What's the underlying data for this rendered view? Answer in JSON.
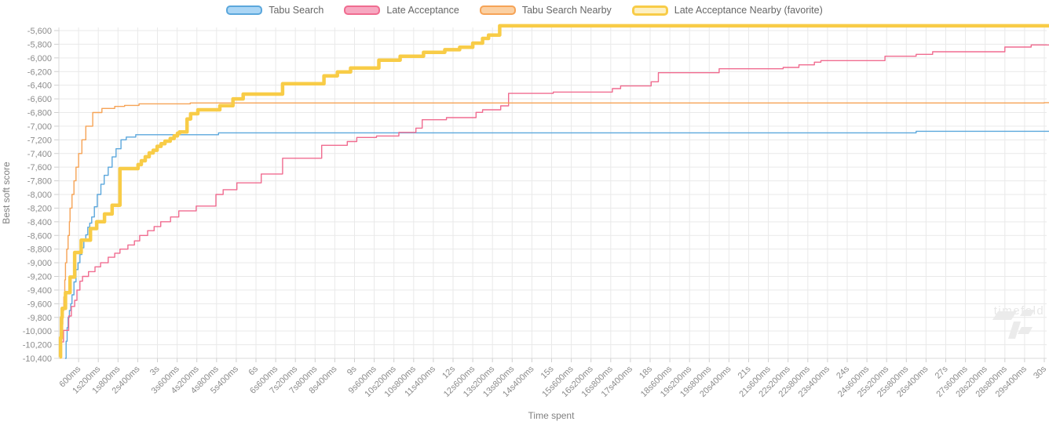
{
  "watermark": {
    "text": "timefold"
  },
  "chart_data": {
    "type": "line",
    "step": true,
    "title": "",
    "xlabel": "Time spent",
    "ylabel": "Best soft score",
    "grid": true,
    "legend_position": "top",
    "x_axis": {
      "range_seconds": [
        0,
        30
      ],
      "tick_interval_seconds": 0.6,
      "first_tick_seconds": 0.6,
      "tick_labels": [
        "600ms",
        "1s200ms",
        "1s800ms",
        "2s400ms",
        "3s",
        "3s600ms",
        "4s200ms",
        "4s800ms",
        "5s400ms",
        "6s",
        "6s600ms",
        "7s200ms",
        "7s800ms",
        "8s400ms",
        "9s",
        "9s600ms",
        "10s200ms",
        "10s800ms",
        "11s400ms",
        "12s",
        "12s600ms",
        "13s200ms",
        "13s800ms",
        "14s400ms",
        "15s",
        "15s600ms",
        "16s200ms",
        "16s800ms",
        "17s400ms",
        "18s",
        "18s600ms",
        "19s200ms",
        "19s800ms",
        "20s400ms",
        "21s",
        "21s600ms",
        "22s200ms",
        "22s800ms",
        "23s400ms",
        "24s",
        "24s600ms",
        "25s200ms",
        "25s800ms",
        "26s400ms",
        "27s",
        "27s600ms",
        "28s200ms",
        "28s800ms",
        "29s400ms",
        "30s"
      ]
    },
    "y_axis": {
      "tick_max": -5600,
      "tick_min": -10400,
      "tick_step": 200,
      "tick_labels": [
        "-5,600",
        "-5,800",
        "-6,000",
        "-6,200",
        "-6,400",
        "-6,600",
        "-6,800",
        "-7,000",
        "-7,200",
        "-7,400",
        "-7,600",
        "-7,800",
        "-8,000",
        "-8,200",
        "-8,400",
        "-8,600",
        "-8,800",
        "-9,000",
        "-9,200",
        "-9,400",
        "-9,600",
        "-9,800",
        "-10,000",
        "-10,200",
        "-10,400"
      ]
    },
    "series": [
      {
        "name": "Tabu Search",
        "color": "#5ba7dc",
        "swatch_fill": "#abd6f5",
        "line_width": 1.4,
        "favorite": false,
        "points": [
          [
            0.19,
            -10400
          ],
          [
            0.22,
            -10150
          ],
          [
            0.25,
            -9950
          ],
          [
            0.28,
            -9800
          ],
          [
            0.32,
            -9700
          ],
          [
            0.36,
            -9600
          ],
          [
            0.4,
            -9470
          ],
          [
            0.46,
            -9280
          ],
          [
            0.52,
            -9100
          ],
          [
            0.58,
            -9000
          ],
          [
            0.64,
            -8880
          ],
          [
            0.7,
            -8780
          ],
          [
            0.76,
            -8680
          ],
          [
            0.82,
            -8590
          ],
          [
            0.88,
            -8480
          ],
          [
            0.94,
            -8420
          ],
          [
            1.0,
            -8330
          ],
          [
            1.08,
            -8180
          ],
          [
            1.17,
            -8000
          ],
          [
            1.28,
            -7850
          ],
          [
            1.38,
            -7720
          ],
          [
            1.5,
            -7600
          ],
          [
            1.62,
            -7450
          ],
          [
            1.74,
            -7330
          ],
          [
            1.89,
            -7200
          ],
          [
            2.05,
            -7160
          ],
          [
            2.34,
            -7125
          ],
          [
            4.86,
            -7097
          ],
          [
            26.1,
            -7075
          ],
          [
            30,
            -7075
          ]
        ]
      },
      {
        "name": "Late Acceptance",
        "color": "#f06c90",
        "swatch_fill": "#f7a8c1",
        "line_width": 1.4,
        "favorite": false,
        "points": [
          [
            0.05,
            -10380
          ],
          [
            0.08,
            -10160
          ],
          [
            0.14,
            -9990
          ],
          [
            0.3,
            -9780
          ],
          [
            0.38,
            -9640
          ],
          [
            0.48,
            -9550
          ],
          [
            0.55,
            -9400
          ],
          [
            0.64,
            -9270
          ],
          [
            0.72,
            -9200
          ],
          [
            0.9,
            -9130
          ],
          [
            1.1,
            -9060
          ],
          [
            1.27,
            -9000
          ],
          [
            1.5,
            -8920
          ],
          [
            1.7,
            -8860
          ],
          [
            1.86,
            -8800
          ],
          [
            2.1,
            -8740
          ],
          [
            2.3,
            -8680
          ],
          [
            2.46,
            -8600
          ],
          [
            2.7,
            -8530
          ],
          [
            2.9,
            -8470
          ],
          [
            3.1,
            -8400
          ],
          [
            3.4,
            -8330
          ],
          [
            3.65,
            -8240
          ],
          [
            4.18,
            -8170
          ],
          [
            4.78,
            -8000
          ],
          [
            5.0,
            -7930
          ],
          [
            5.42,
            -7830
          ],
          [
            6.16,
            -7700
          ],
          [
            6.81,
            -7470
          ],
          [
            8.0,
            -7280
          ],
          [
            8.78,
            -7225
          ],
          [
            9.07,
            -7165
          ],
          [
            9.67,
            -7143
          ],
          [
            10.35,
            -7090
          ],
          [
            10.87,
            -7028
          ],
          [
            11.06,
            -6906
          ],
          [
            11.8,
            -6875
          ],
          [
            12.7,
            -6798
          ],
          [
            12.9,
            -6760
          ],
          [
            13.45,
            -6702
          ],
          [
            13.69,
            -6520
          ],
          [
            15.05,
            -6500
          ],
          [
            16.85,
            -6450
          ],
          [
            17.1,
            -6411
          ],
          [
            18.03,
            -6350
          ],
          [
            18.25,
            -6217
          ],
          [
            20.1,
            -6159
          ],
          [
            22.05,
            -6140
          ],
          [
            22.53,
            -6102
          ],
          [
            23.0,
            -6063
          ],
          [
            23.2,
            -6040
          ],
          [
            25.15,
            -5975
          ],
          [
            26.1,
            -5948
          ],
          [
            26.6,
            -5910
          ],
          [
            28.8,
            -5841
          ],
          [
            29.6,
            -5810
          ],
          [
            30,
            -5810
          ]
        ]
      },
      {
        "name": "Tabu Search Nearby",
        "color": "#f6a356",
        "swatch_fill": "#fbd0a2",
        "line_width": 1.4,
        "favorite": false,
        "points": [
          [
            0.03,
            -10350
          ],
          [
            0.06,
            -10100
          ],
          [
            0.09,
            -9900
          ],
          [
            0.12,
            -9700
          ],
          [
            0.15,
            -9500
          ],
          [
            0.18,
            -9250
          ],
          [
            0.2,
            -9000
          ],
          [
            0.24,
            -8800
          ],
          [
            0.28,
            -8600
          ],
          [
            0.32,
            -8400
          ],
          [
            0.34,
            -8200
          ],
          [
            0.4,
            -8000
          ],
          [
            0.46,
            -7800
          ],
          [
            0.52,
            -7600
          ],
          [
            0.6,
            -7400
          ],
          [
            0.7,
            -7200
          ],
          [
            0.82,
            -7000
          ],
          [
            1.03,
            -6800
          ],
          [
            1.31,
            -6740
          ],
          [
            1.7,
            -6710
          ],
          [
            2.0,
            -6695
          ],
          [
            2.44,
            -6672
          ],
          [
            4.0,
            -6660
          ],
          [
            30,
            -6655
          ]
        ]
      },
      {
        "name": "Late Acceptance Nearby (favorite)",
        "color": "#f8cc47",
        "swatch_fill": "#fdf0c2",
        "line_width": 4.5,
        "favorite": true,
        "points": [
          [
            0.02,
            -10380
          ],
          [
            0.05,
            -10100
          ],
          [
            0.08,
            -9800
          ],
          [
            0.1,
            -9668
          ],
          [
            0.2,
            -9438
          ],
          [
            0.34,
            -9210
          ],
          [
            0.48,
            -8850
          ],
          [
            0.68,
            -8670
          ],
          [
            0.96,
            -8500
          ],
          [
            1.15,
            -8400
          ],
          [
            1.39,
            -8286
          ],
          [
            1.62,
            -8157
          ],
          [
            1.86,
            -7621
          ],
          [
            2.41,
            -7563
          ],
          [
            2.51,
            -7506
          ],
          [
            2.63,
            -7448
          ],
          [
            2.75,
            -7391
          ],
          [
            2.87,
            -7352
          ],
          [
            2.99,
            -7295
          ],
          [
            3.11,
            -7257
          ],
          [
            3.23,
            -7219
          ],
          [
            3.39,
            -7180
          ],
          [
            3.51,
            -7142
          ],
          [
            3.61,
            -7104
          ],
          [
            3.67,
            -7085
          ],
          [
            3.9,
            -6894
          ],
          [
            4.01,
            -6817
          ],
          [
            4.23,
            -6760
          ],
          [
            4.9,
            -6700
          ],
          [
            5.3,
            -6600
          ],
          [
            5.61,
            -6530
          ],
          [
            6.81,
            -6378
          ],
          [
            8.07,
            -6263
          ],
          [
            8.48,
            -6206
          ],
          [
            8.88,
            -6148
          ],
          [
            9.74,
            -6033
          ],
          [
            10.39,
            -5976
          ],
          [
            11.1,
            -5918
          ],
          [
            11.75,
            -5880
          ],
          [
            12.2,
            -5845
          ],
          [
            12.6,
            -5784
          ],
          [
            12.9,
            -5715
          ],
          [
            13.08,
            -5665
          ],
          [
            13.42,
            -5530
          ],
          [
            30,
            -5530
          ]
        ]
      }
    ]
  }
}
